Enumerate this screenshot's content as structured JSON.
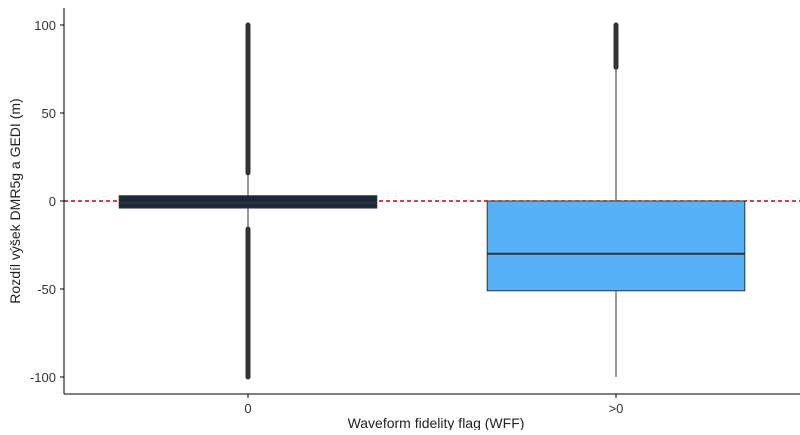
{
  "chart_data": {
    "type": "box",
    "title": "",
    "xlabel": "Waveform fidelity flag (WFF)",
    "ylabel": "Rozdíl výšek DMR5g a GEDI (m)",
    "categories": [
      "0",
      ">0"
    ],
    "ylim": [
      -107,
      108
    ],
    "yticks": [
      100,
      50,
      0,
      -50,
      -100
    ],
    "reference_line": {
      "y": 0,
      "color": "#cc0000",
      "style": "dashed"
    },
    "boxes": [
      {
        "category": "0",
        "q1": -4,
        "median": -1,
        "q3": 3,
        "whisker_low": -100,
        "whisker_high": 100,
        "outlier_ranges": [
          [
            -100,
            -16
          ],
          [
            16,
            100
          ]
        ],
        "fill": "#1b2a3a"
      },
      {
        "category": ">0",
        "q1": -51,
        "median": -30,
        "q3": 0,
        "whisker_low": -100,
        "whisker_high": 100,
        "outlier_ranges": [
          [
            76,
            100
          ]
        ],
        "fill": "#56b1f7"
      }
    ],
    "grid": false,
    "legend": "none"
  }
}
